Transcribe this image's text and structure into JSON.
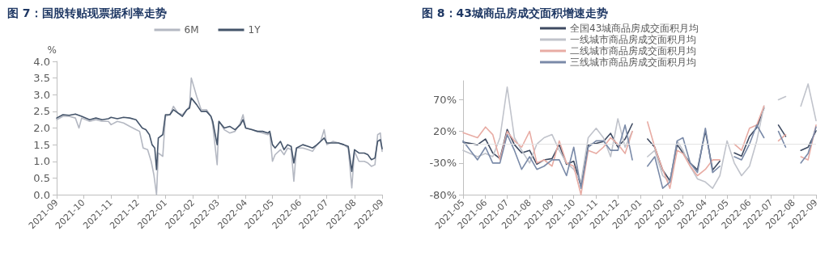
{
  "chart_data": [
    {
      "type": "line",
      "title": "图 7：国股转贴现票据利率走势",
      "ylabel": "%",
      "legend": "top",
      "marker": "none",
      "line_style": "solid",
      "grid": false,
      "xlim": [
        "2021-09-01",
        "2022-09-01"
      ],
      "xticks": [
        "2021-09",
        "2021-10",
        "2021-11",
        "2021-12",
        "2022-01",
        "2022-02",
        "2022-03",
        "2022-04",
        "2022-05",
        "2022-06",
        "2022-07",
        "2022-08",
        "2022-09"
      ],
      "ylim": [
        0,
        4
      ],
      "yticks": [
        {
          "value": 0,
          "label": "0.0"
        },
        {
          "value": 0.5,
          "label": "0.5"
        },
        {
          "value": 1,
          "label": "1.0"
        },
        {
          "value": 1.5,
          "label": "1.5"
        },
        {
          "value": 2,
          "label": "2.0"
        },
        {
          "value": 2.5,
          "label": "2.5"
        },
        {
          "value": 3,
          "label": "3.0"
        },
        {
          "value": 3.5,
          "label": "3.5"
        },
        {
          "value": 4,
          "label": "4.0"
        }
      ],
      "series": [
        {
          "name": "6M",
          "color": "#b4b8c2",
          "x": [
            "2021-09-01",
            "2021-09-08",
            "2021-09-15",
            "2021-09-22",
            "2021-09-26",
            "2021-09-29",
            "2021-10-08",
            "2021-10-15",
            "2021-10-22",
            "2021-10-29",
            "2021-11-01",
            "2021-11-08",
            "2021-11-15",
            "2021-11-22",
            "2021-11-29",
            "2021-12-03",
            "2021-12-07",
            "2021-12-12",
            "2021-12-16",
            "2021-12-19",
            "2021-12-22",
            "2021-12-24",
            "2021-12-29",
            "2022-01-01",
            "2022-01-06",
            "2022-01-10",
            "2022-01-15",
            "2022-01-20",
            "2022-01-25",
            "2022-01-28",
            "2022-01-30",
            "2022-02-05",
            "2022-02-10",
            "2022-02-16",
            "2022-02-21",
            "2022-02-23",
            "2022-02-28",
            "2022-03-02",
            "2022-03-08",
            "2022-03-14",
            "2022-03-20",
            "2022-03-26",
            "2022-03-29",
            "2022-04-01",
            "2022-04-08",
            "2022-04-14",
            "2022-04-20",
            "2022-04-26",
            "2022-04-28",
            "2022-05-01",
            "2022-05-04",
            "2022-05-10",
            "2022-05-14",
            "2022-05-18",
            "2022-05-22",
            "2022-05-25",
            "2022-05-28",
            "2022-06-04",
            "2022-06-10",
            "2022-06-15",
            "2022-06-20",
            "2022-06-24",
            "2022-06-28",
            "2022-07-01",
            "2022-07-08",
            "2022-07-14",
            "2022-07-20",
            "2022-07-25",
            "2022-07-29",
            "2022-08-01",
            "2022-08-06",
            "2022-08-12",
            "2022-08-16",
            "2022-08-20",
            "2022-08-24",
            "2022-08-27",
            "2022-08-30",
            "2022-09-01"
          ],
          "values": [
            2.25,
            2.35,
            2.35,
            2.3,
            2.0,
            2.3,
            2.2,
            2.25,
            2.2,
            2.2,
            2.1,
            2.2,
            2.15,
            2.05,
            1.95,
            1.9,
            1.4,
            1.35,
            1.0,
            0.6,
            0.0,
            1.25,
            1.15,
            2.35,
            2.4,
            2.65,
            2.45,
            2.4,
            2.55,
            2.65,
            3.5,
            2.95,
            2.55,
            2.55,
            2.35,
            2.1,
            0.9,
            2.2,
            1.95,
            1.85,
            1.9,
            2.15,
            2.4,
            2.0,
            1.95,
            1.9,
            1.85,
            1.8,
            1.85,
            1.0,
            1.2,
            1.35,
            1.2,
            1.4,
            1.35,
            0.4,
            1.4,
            1.4,
            1.35,
            1.3,
            1.5,
            1.6,
            1.95,
            1.5,
            1.6,
            1.55,
            1.5,
            1.4,
            0.2,
            1.3,
            1.0,
            1.0,
            0.95,
            0.85,
            0.9,
            1.8,
            1.85,
            1.3
          ]
        },
        {
          "name": "1Y",
          "color": "#44546a",
          "x": [
            "2021-09-01",
            "2021-09-08",
            "2021-09-15",
            "2021-09-22",
            "2021-09-29",
            "2021-10-08",
            "2021-10-15",
            "2021-10-22",
            "2021-10-29",
            "2021-11-01",
            "2021-11-08",
            "2021-11-15",
            "2021-11-22",
            "2021-11-29",
            "2021-12-06",
            "2021-12-10",
            "2021-12-14",
            "2021-12-17",
            "2021-12-20",
            "2021-12-22",
            "2021-12-24",
            "2021-12-29",
            "2022-01-01",
            "2022-01-06",
            "2022-01-10",
            "2022-01-15",
            "2022-01-20",
            "2022-01-25",
            "2022-01-28",
            "2022-01-30",
            "2022-02-05",
            "2022-02-10",
            "2022-02-16",
            "2022-02-21",
            "2022-02-23",
            "2022-02-28",
            "2022-03-02",
            "2022-03-08",
            "2022-03-14",
            "2022-03-20",
            "2022-03-26",
            "2022-03-29",
            "2022-04-01",
            "2022-04-08",
            "2022-04-14",
            "2022-04-20",
            "2022-04-26",
            "2022-04-28",
            "2022-05-01",
            "2022-05-04",
            "2022-05-10",
            "2022-05-14",
            "2022-05-18",
            "2022-05-22",
            "2022-05-25",
            "2022-05-28",
            "2022-06-04",
            "2022-06-10",
            "2022-06-15",
            "2022-06-20",
            "2022-06-24",
            "2022-06-28",
            "2022-07-01",
            "2022-07-08",
            "2022-07-14",
            "2022-07-20",
            "2022-07-25",
            "2022-07-29",
            "2022-08-01",
            "2022-08-06",
            "2022-08-12",
            "2022-08-16",
            "2022-08-20",
            "2022-08-24",
            "2022-08-27",
            "2022-08-30",
            "2022-09-01"
          ],
          "values": [
            2.3,
            2.4,
            2.38,
            2.42,
            2.35,
            2.25,
            2.3,
            2.25,
            2.28,
            2.32,
            2.28,
            2.32,
            2.3,
            2.25,
            2.0,
            1.95,
            1.8,
            1.5,
            1.4,
            0.75,
            1.7,
            1.8,
            2.4,
            2.4,
            2.55,
            2.45,
            2.35,
            2.55,
            2.6,
            2.9,
            2.7,
            2.5,
            2.5,
            2.35,
            2.2,
            1.5,
            2.2,
            2.0,
            2.05,
            1.95,
            2.1,
            2.25,
            2.0,
            1.95,
            1.9,
            1.9,
            1.85,
            1.9,
            1.5,
            1.4,
            1.6,
            1.35,
            1.5,
            1.45,
            0.95,
            1.4,
            1.5,
            1.45,
            1.4,
            1.5,
            1.6,
            1.7,
            1.55,
            1.55,
            1.55,
            1.5,
            1.45,
            0.7,
            1.35,
            1.25,
            1.25,
            1.2,
            1.05,
            1.1,
            1.6,
            1.65,
            1.38
          ]
        }
      ]
    },
    {
      "type": "line",
      "title": "图 8：43城商品房成交面积增速走势",
      "legend": "top",
      "marker": "none",
      "line_style": "solid",
      "grid": false,
      "x": [
        "2021-05-01",
        "2021-05-21",
        "2021-06-01",
        "2021-06-11",
        "2021-06-21",
        "2021-07-01",
        "2021-07-11",
        "2021-07-21",
        "2021-08-01",
        "2021-08-11",
        "2021-08-21",
        "2021-09-01",
        "2021-09-11",
        "2021-09-21",
        "2021-10-01",
        "2021-10-11",
        "2021-10-21",
        "2021-11-01",
        "2021-11-11",
        "2021-11-21",
        "2021-12-01",
        "2021-12-11",
        "2021-12-21",
        "2022-01-01",
        "2022-01-11",
        "2022-01-21",
        "2022-02-01",
        "2022-02-11",
        "2022-02-21",
        "2022-03-01",
        "2022-03-11",
        "2022-03-21",
        "2022-04-01",
        "2022-04-11",
        "2022-04-21",
        "2022-05-01",
        "2022-05-11",
        "2022-05-21",
        "2022-06-01",
        "2022-06-11",
        "2022-06-21",
        "2022-07-01",
        "2022-07-11",
        "2022-07-21",
        "2022-08-01",
        "2022-08-11",
        "2022-08-21",
        "2022-09-01"
      ],
      "xlim": [
        "2021-05-01",
        "2022-09-01"
      ],
      "xticks": [
        "2021-05",
        "2021-06",
        "2021-07",
        "2021-08",
        "2021-09",
        "2021-10",
        "2021-11",
        "2021-12",
        "2022-01",
        "2022-02",
        "2022-03",
        "2022-04",
        "2022-05",
        "2022-06",
        "2022-07",
        "2022-08",
        "2022-09"
      ],
      "ylim": [
        -80,
        100
      ],
      "yticks": [
        {
          "value": -80,
          "label": "-80%"
        },
        {
          "value": -30,
          "label": "-30%"
        },
        {
          "value": 20,
          "label": "20%"
        },
        {
          "value": 70,
          "label": "70%"
        }
      ],
      "ref_lines": [
        {
          "axis": "y",
          "value": 0,
          "color": "#e3e3e3"
        }
      ],
      "series": [
        {
          "name": "全国43城商品房成交面积月均",
          "color": "#3e4a61",
          "values": [
            3,
            -1,
            8,
            -14,
            -23,
            23,
            -1,
            -14,
            -10,
            -32,
            -25,
            -23,
            -1,
            -32,
            -27,
            -67,
            -1,
            1,
            4,
            17,
            -5,
            8,
            32,
            null,
            8,
            -5,
            -41,
            -58,
            -1,
            -14,
            -30,
            -41,
            21,
            -41,
            -27,
            null,
            -14,
            -19,
            12,
            26,
            57,
            null,
            30,
            12,
            null,
            -10,
            -5,
            21
          ]
        },
        {
          "name": "一线城市商品房成交面积月均",
          "color": "#c0c3cb",
          "values": [
            -10,
            -20,
            -15,
            -20,
            10,
            90,
            10,
            -10,
            -30,
            0,
            10,
            15,
            -10,
            -30,
            -40,
            -60,
            10,
            25,
            10,
            -20,
            40,
            -5,
            20,
            null,
            -20,
            -10,
            -50,
            -60,
            5,
            -10,
            -35,
            -55,
            -60,
            -70,
            -50,
            5,
            -30,
            -50,
            -35,
            5,
            60,
            null,
            70,
            75,
            null,
            60,
            95,
            37
          ]
        },
        {
          "name": "二线城市商品房成交面积月均",
          "color": "#e8aca4",
          "values": [
            18,
            10,
            27,
            15,
            -25,
            20,
            5,
            -5,
            20,
            -30,
            -25,
            -35,
            5,
            -30,
            -35,
            -80,
            -10,
            -15,
            -5,
            10,
            0,
            -15,
            20,
            null,
            35,
            -5,
            -40,
            -70,
            -10,
            -15,
            -35,
            -50,
            -40,
            -25,
            -25,
            null,
            0,
            -10,
            25,
            30,
            60,
            null,
            5,
            15,
            null,
            -20,
            -25,
            30
          ]
        },
        {
          "name": "三线城市商品房成交面积月均",
          "color": "#7a8aa8",
          "values": [
            5,
            -25,
            -5,
            -30,
            -30,
            15,
            -10,
            -40,
            -20,
            -40,
            -35,
            -25,
            -25,
            -50,
            -5,
            -70,
            -5,
            5,
            5,
            -10,
            -10,
            30,
            -25,
            null,
            -35,
            -20,
            -70,
            -60,
            5,
            10,
            -30,
            -45,
            25,
            -45,
            -35,
            null,
            -20,
            -25,
            0,
            30,
            10,
            null,
            20,
            -5,
            null,
            -30,
            -15,
            27
          ]
        }
      ]
    }
  ]
}
